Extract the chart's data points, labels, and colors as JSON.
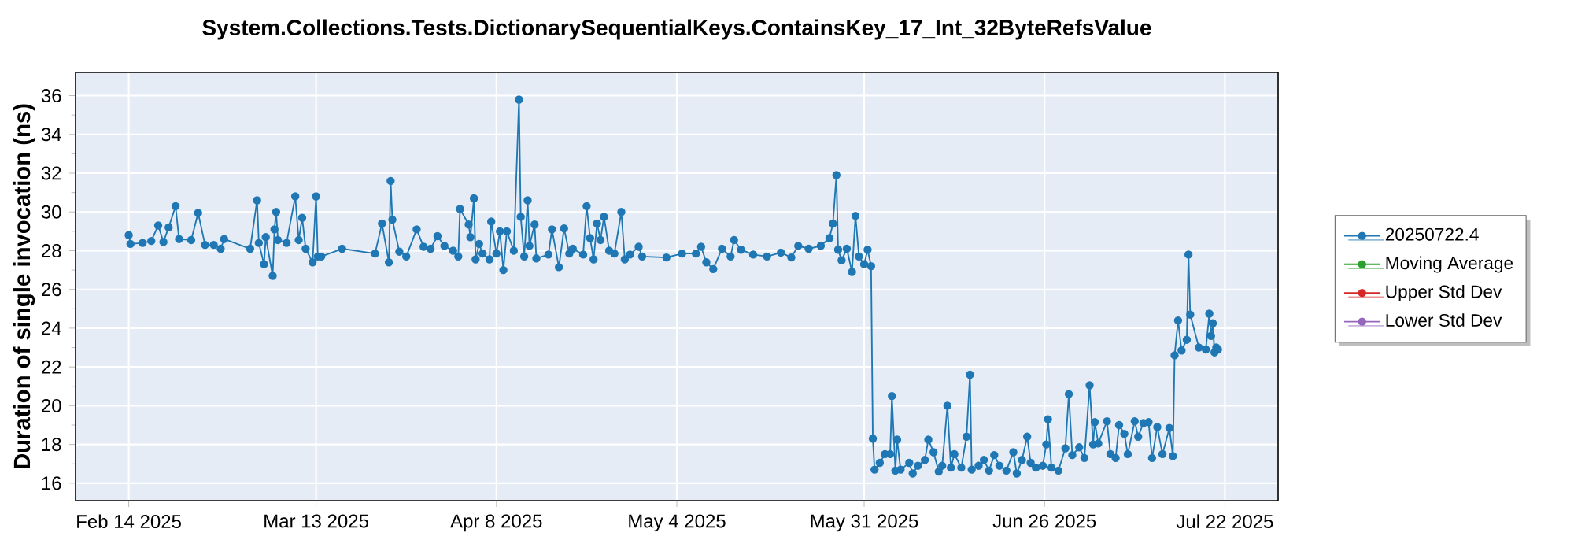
{
  "chart_data": {
    "type": "line",
    "title": "System.Collections.Tests.DictionarySequentialKeys.ContainsKey_17_Int_32ByteRefsValue",
    "ylabel": "Duration of single invocation (ns)",
    "x": [
      "2025-02-14T00:00",
      "2025-02-14T06:00",
      "2025-02-16T00:00",
      "2025-02-17T06:00",
      "2025-02-18T06:00",
      "2025-02-19T00:00",
      "2025-02-19T18:00",
      "2025-02-20T18:00",
      "2025-02-21T06:00",
      "2025-02-23T00:00",
      "2025-02-24T00:00",
      "2025-02-25T00:00",
      "2025-02-26T06:00",
      "2025-02-27T06:00",
      "2025-02-27T18:00",
      "2025-03-03T12:00",
      "2025-03-04T12:00",
      "2025-03-04T18:00",
      "2025-03-05T12:00",
      "2025-03-05T18:00",
      "2025-03-06T18:00",
      "2025-03-07T00:00",
      "2025-03-07T06:00",
      "2025-03-07T12:00",
      "2025-03-08T18:00",
      "2025-03-10T00:00",
      "2025-03-10T12:00",
      "2025-03-11T00:00",
      "2025-03-11T12:00",
      "2025-03-12T12:00",
      "2025-03-13T00:00",
      "2025-03-13T06:00",
      "2025-03-13T18:00",
      "2025-03-16T18:00",
      "2025-03-21T12:00",
      "2025-03-22T12:00",
      "2025-03-23T12:00",
      "2025-03-23T18:00",
      "2025-03-24T00:00",
      "2025-03-25T00:00",
      "2025-03-26T00:00",
      "2025-03-27T12:00",
      "2025-03-28T12:00",
      "2025-03-29T12:00",
      "2025-03-30T12:00",
      "2025-03-31T12:00",
      "2025-04-01T18:00",
      "2025-04-02T12:00",
      "2025-04-02T18:00",
      "2025-04-04T00:00",
      "2025-04-04T06:00",
      "2025-04-04T18:00",
      "2025-04-05T00:00",
      "2025-04-05T12:00",
      "2025-04-06T00:00",
      "2025-04-07T00:00",
      "2025-04-07T06:00",
      "2025-04-08T00:00",
      "2025-04-08T12:00",
      "2025-04-09T00:00",
      "2025-04-09T12:00",
      "2025-04-10T12:00",
      "2025-04-11T06:00",
      "2025-04-11T12:00",
      "2025-04-12T00:00",
      "2025-04-12T12:00",
      "2025-04-12T18:00",
      "2025-04-13T12:00",
      "2025-04-13T18:00",
      "2025-04-15T12:00",
      "2025-04-16T00:00",
      "2025-04-17T00:00",
      "2025-04-17T18:00",
      "2025-04-18T12:00",
      "2025-04-19T00:00",
      "2025-04-20T12:00",
      "2025-04-21T00:00",
      "2025-04-21T12:00",
      "2025-04-22T00:00",
      "2025-04-22T12:00",
      "2025-04-23T00:00",
      "2025-04-23T12:00",
      "2025-04-24T06:00",
      "2025-04-25T00:00",
      "2025-04-26T00:00",
      "2025-04-26T12:00",
      "2025-04-27T06:00",
      "2025-04-28T12:00",
      "2025-04-29T00:00",
      "2025-05-02T12:00",
      "2025-05-04T18:00",
      "2025-05-06T18:00",
      "2025-05-07T12:00",
      "2025-05-08T06:00",
      "2025-05-09T06:00",
      "2025-05-10T12:00",
      "2025-05-11T18:00",
      "2025-05-12T06:00",
      "2025-05-13T06:00",
      "2025-05-15T00:00",
      "2025-05-17T00:00",
      "2025-05-19T00:00",
      "2025-05-20T12:00",
      "2025-05-21T12:00",
      "2025-05-23T00:00",
      "2025-05-24T18:00",
      "2025-05-26T00:00",
      "2025-05-26T12:00",
      "2025-05-27T00:00",
      "2025-05-27T06:00",
      "2025-05-27T18:00",
      "2025-05-28T12:00",
      "2025-05-29T06:00",
      "2025-05-29T18:00",
      "2025-05-30T06:00",
      "2025-05-31T00:00",
      "2025-05-31T12:00",
      "2025-06-01T00:00",
      "2025-06-01T06:00",
      "2025-06-01T12:00",
      "2025-06-02T06:00",
      "2025-06-03T00:00",
      "2025-06-03T18:00",
      "2025-06-04T00:00",
      "2025-06-04T12:00",
      "2025-06-04T18:00",
      "2025-06-05T06:00",
      "2025-06-06T12:00",
      "2025-06-07T00:00",
      "2025-06-07T18:00",
      "2025-06-08T18:00",
      "2025-06-09T06:00",
      "2025-06-10T00:00",
      "2025-06-10T18:00",
      "2025-06-11T06:00",
      "2025-06-12T00:00",
      "2025-06-12T12:00",
      "2025-06-13T00:00",
      "2025-06-14T00:00",
      "2025-06-14T18:00",
      "2025-06-15T06:00",
      "2025-06-15T12:00",
      "2025-06-16T12:00",
      "2025-06-17T06:00",
      "2025-06-18T00:00",
      "2025-06-18T18:00",
      "2025-06-19T12:00",
      "2025-06-20T12:00",
      "2025-06-21T12:00",
      "2025-06-22T00:00",
      "2025-06-22T18:00",
      "2025-06-23T12:00",
      "2025-06-24T00:00",
      "2025-06-24T18:00",
      "2025-06-25T18:00",
      "2025-06-26T06:00",
      "2025-06-26T12:00",
      "2025-06-27T00:00",
      "2025-06-28T00:00",
      "2025-06-29T00:00",
      "2025-06-29T12:00",
      "2025-06-30T00:00",
      "2025-07-01T00:00",
      "2025-07-01T18:00",
      "2025-07-02T12:00",
      "2025-07-03T00:00",
      "2025-07-03T06:00",
      "2025-07-03T18:00",
      "2025-07-05T00:00",
      "2025-07-05T12:00",
      "2025-07-06T06:00",
      "2025-07-06T18:00",
      "2025-07-07T12:00",
      "2025-07-08T00:00",
      "2025-07-09T00:00",
      "2025-07-09T12:00",
      "2025-07-10T06:00",
      "2025-07-11T00:00",
      "2025-07-11T12:00",
      "2025-07-12T06:00",
      "2025-07-13T00:00",
      "2025-07-14T00:00",
      "2025-07-14T12:00",
      "2025-07-14T18:00",
      "2025-07-15T06:00",
      "2025-07-15T18:00",
      "2025-07-16T12:00",
      "2025-07-16T18:00",
      "2025-07-17T00:00",
      "2025-07-18T06:00",
      "2025-07-19T06:00",
      "2025-07-19T18:00",
      "2025-07-20T00:00",
      "2025-07-20T06:00",
      "2025-07-20T12:00",
      "2025-07-20T18:00",
      "2025-07-21T00:00"
    ],
    "series": [
      {
        "name": "20250722.4",
        "color": "#1f77b4",
        "values": [
          28.8,
          28.35,
          28.4,
          28.5,
          29.3,
          28.45,
          29.2,
          30.3,
          28.6,
          28.55,
          29.95,
          28.3,
          28.3,
          28.1,
          28.6,
          28.1,
          30.6,
          28.4,
          27.3,
          28.7,
          26.7,
          29.1,
          30.0,
          28.55,
          28.4,
          30.8,
          28.55,
          29.7,
          28.1,
          27.4,
          30.8,
          27.7,
          27.7,
          28.1,
          27.85,
          29.4,
          27.4,
          31.6,
          29.6,
          27.95,
          27.7,
          29.1,
          28.2,
          28.1,
          28.75,
          28.25,
          28.0,
          27.7,
          30.15,
          29.35,
          28.7,
          30.7,
          27.55,
          28.35,
          27.85,
          27.55,
          29.5,
          27.85,
          29.0,
          27.0,
          29.0,
          28.0,
          35.8,
          29.75,
          27.7,
          30.6,
          28.25,
          29.35,
          27.6,
          27.8,
          29.1,
          27.15,
          29.15,
          27.85,
          28.1,
          27.8,
          30.3,
          28.65,
          27.55,
          29.4,
          28.55,
          29.75,
          28.0,
          27.85,
          30.0,
          27.55,
          27.8,
          28.2,
          27.7,
          27.65,
          27.85,
          27.85,
          28.2,
          27.4,
          27.05,
          28.1,
          27.7,
          28.55,
          28.05,
          27.8,
          27.7,
          27.9,
          27.65,
          28.25,
          28.1,
          28.25,
          28.65,
          29.4,
          31.9,
          28.05,
          27.5,
          28.1,
          26.9,
          29.8,
          27.7,
          27.3,
          28.05,
          27.2,
          18.3,
          16.7,
          17.05,
          17.5,
          17.5,
          20.5,
          16.65,
          18.25,
          16.7,
          17.05,
          16.5,
          16.9,
          17.2,
          18.25,
          17.6,
          16.6,
          16.9,
          20.0,
          16.8,
          17.5,
          16.8,
          18.4,
          21.6,
          16.7,
          16.9,
          17.2,
          16.65,
          17.45,
          16.9,
          16.65,
          17.6,
          16.5,
          17.2,
          18.4,
          17.05,
          16.8,
          16.9,
          18.0,
          19.3,
          16.8,
          16.65,
          17.8,
          20.6,
          17.45,
          17.85,
          17.3,
          21.05,
          18.0,
          19.15,
          18.05,
          19.2,
          17.5,
          17.3,
          19.0,
          18.55,
          17.5,
          19.2,
          18.4,
          19.1,
          19.15,
          17.3,
          18.9,
          17.5,
          18.85,
          17.4,
          22.6,
          24.4,
          22.85,
          23.4,
          27.8,
          24.7,
          23.0,
          22.9,
          24.75,
          23.6,
          24.25,
          22.75,
          23.0,
          22.9
        ]
      },
      {
        "name": "Moving Average",
        "color": "#2ca02c",
        "values": [
          null,
          null,
          null,
          null,
          null,
          null,
          null,
          null,
          null,
          null,
          null,
          null,
          null,
          null,
          null,
          null,
          null,
          null,
          null,
          null,
          null,
          null,
          null,
          null,
          null,
          null,
          null,
          null,
          null,
          null,
          null,
          null,
          null,
          null,
          null,
          null,
          null,
          null,
          null,
          null,
          null,
          null,
          null,
          null,
          null,
          null,
          null,
          null,
          null,
          null,
          null,
          null,
          null,
          null,
          null,
          null,
          null,
          null,
          null,
          null,
          null,
          null,
          null,
          null,
          null,
          null,
          null,
          null,
          null,
          null,
          null,
          null,
          null,
          null,
          null,
          null,
          null,
          null,
          null,
          null,
          null,
          null,
          null,
          null,
          null,
          null,
          null,
          null,
          null,
          null,
          null,
          null,
          null,
          null,
          null,
          null,
          null,
          null,
          null,
          null,
          null,
          null,
          null,
          null,
          null,
          null,
          null,
          null,
          null,
          null,
          null,
          null,
          null,
          null,
          null,
          null,
          null,
          null,
          null,
          null,
          null,
          null,
          null,
          null,
          null,
          null,
          null,
          null,
          null,
          null,
          null,
          null,
          null,
          null,
          null,
          null,
          null,
          null,
          null,
          null,
          null,
          null,
          null,
          null,
          null,
          null,
          null,
          null,
          null,
          null,
          null,
          null,
          null,
          null,
          null,
          null,
          null,
          null,
          null,
          null,
          null,
          null,
          null,
          null,
          null,
          null,
          null,
          null,
          null,
          null,
          null,
          null,
          null,
          null,
          null,
          null,
          null,
          null,
          null,
          null,
          null,
          null,
          null,
          null,
          null,
          null,
          null,
          null,
          null,
          null,
          null,
          null,
          null,
          null,
          null,
          null,
          null
        ]
      },
      {
        "name": "Upper Std Dev",
        "color": "#d62728",
        "values": [
          null,
          null,
          null,
          null,
          null,
          null,
          null,
          null,
          null,
          null,
          null,
          null,
          null,
          null,
          null,
          null,
          null,
          null,
          null,
          null,
          null,
          null,
          null,
          null,
          null,
          null,
          null,
          null,
          null,
          null,
          null,
          null,
          null,
          null,
          null,
          null,
          null,
          null,
          null,
          null,
          null,
          null,
          null,
          null,
          null,
          null,
          null,
          null,
          null,
          null,
          null,
          null,
          null,
          null,
          null,
          null,
          null,
          null,
          null,
          null,
          null,
          null,
          null,
          null,
          null,
          null,
          null,
          null,
          null,
          null,
          null,
          null,
          null,
          null,
          null,
          null,
          null,
          null,
          null,
          null,
          null,
          null,
          null,
          null,
          null,
          null,
          null,
          null,
          null,
          null,
          null,
          null,
          null,
          null,
          null,
          null,
          null,
          null,
          null,
          null,
          null,
          null,
          null,
          null,
          null,
          null,
          null,
          null,
          null,
          null,
          null,
          null,
          null,
          null,
          null,
          null,
          null,
          null,
          null,
          null,
          null,
          null,
          null,
          null,
          null,
          null,
          null,
          null,
          null,
          null,
          null,
          null,
          null,
          null,
          null,
          null,
          null,
          null,
          null,
          null,
          null,
          null,
          null,
          null,
          null,
          null,
          null,
          null,
          null,
          null,
          null,
          null,
          null,
          null,
          null,
          null,
          null,
          null,
          null,
          null,
          null,
          null,
          null,
          null,
          null,
          null,
          null,
          null,
          null,
          null,
          null,
          null,
          null,
          null,
          null,
          null,
          null,
          null,
          null,
          null,
          null,
          null,
          null,
          null,
          null,
          null,
          null,
          null,
          null,
          null,
          null,
          null,
          null,
          null,
          null,
          null,
          null
        ]
      },
      {
        "name": "Lower Std Dev",
        "color": "#9467bd",
        "values": [
          null,
          null,
          null,
          null,
          null,
          null,
          null,
          null,
          null,
          null,
          null,
          null,
          null,
          null,
          null,
          null,
          null,
          null,
          null,
          null,
          null,
          null,
          null,
          null,
          null,
          null,
          null,
          null,
          null,
          null,
          null,
          null,
          null,
          null,
          null,
          null,
          null,
          null,
          null,
          null,
          null,
          null,
          null,
          null,
          null,
          null,
          null,
          null,
          null,
          null,
          null,
          null,
          null,
          null,
          null,
          null,
          null,
          null,
          null,
          null,
          null,
          null,
          null,
          null,
          null,
          null,
          null,
          null,
          null,
          null,
          null,
          null,
          null,
          null,
          null,
          null,
          null,
          null,
          null,
          null,
          null,
          null,
          null,
          null,
          null,
          null,
          null,
          null,
          null,
          null,
          null,
          null,
          null,
          null,
          null,
          null,
          null,
          null,
          null,
          null,
          null,
          null,
          null,
          null,
          null,
          null,
          null,
          null,
          null,
          null,
          null,
          null,
          null,
          null,
          null,
          null,
          null,
          null,
          null,
          null,
          null,
          null,
          null,
          null,
          null,
          null,
          null,
          null,
          null,
          null,
          null,
          null,
          null,
          null,
          null,
          null,
          null,
          null,
          null,
          null,
          null,
          null,
          null,
          null,
          null,
          null,
          null,
          null,
          null,
          null,
          null,
          null,
          null,
          null,
          null,
          null,
          null,
          null,
          null,
          null,
          null,
          null,
          null,
          null,
          null,
          null,
          null,
          null,
          null,
          null,
          null,
          null,
          null,
          null,
          null,
          null,
          null,
          null,
          null,
          null,
          null,
          null,
          null,
          null,
          null,
          null,
          null,
          null,
          null,
          null,
          null,
          null,
          null,
          null,
          null,
          null,
          null
        ]
      }
    ],
    "xlim": [
      "2025-02-06T08:00",
      "2025-07-29T16:00"
    ],
    "xticks": [
      {
        "value": "2025-02-14",
        "label": "Feb 14 2025"
      },
      {
        "value": "2025-03-13",
        "label": "Mar 13 2025"
      },
      {
        "value": "2025-04-08",
        "label": "Apr 8 2025"
      },
      {
        "value": "2025-05-04",
        "label": "May 4 2025"
      },
      {
        "value": "2025-05-31",
        "label": "May 31 2025"
      },
      {
        "value": "2025-06-26",
        "label": "Jun 26 2025"
      },
      {
        "value": "2025-07-22",
        "label": "Jul 22 2025"
      }
    ],
    "ylim": [
      15.1,
      37.2
    ],
    "yticks": [
      16,
      18,
      20,
      22,
      24,
      26,
      28,
      30,
      32,
      34,
      36
    ],
    "grid": true,
    "legend": "right",
    "marker": "circle",
    "line_style": "solid"
  }
}
